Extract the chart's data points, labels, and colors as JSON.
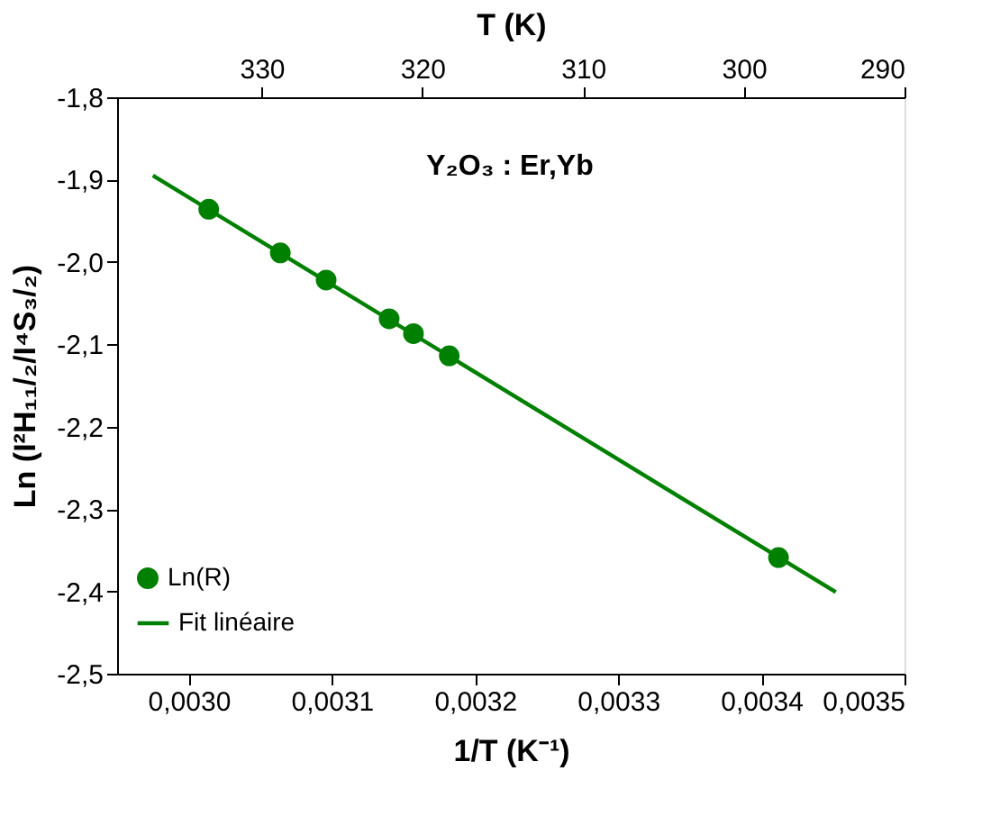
{
  "chart_data": {
    "type": "scatter",
    "xlabel": "1/T (K⁻¹)",
    "ylabel": "Ln (I²H₁₁/₂/I⁴S₃/₂)",
    "x2label": "T (K)",
    "annotations": [
      "Y₂O₃ : Er,Yb"
    ],
    "series": [
      {
        "name": "Ln(R)",
        "type": "scatter",
        "color": "#008000",
        "marker": "circle",
        "x": [
          0.003014,
          0.003064,
          0.003096,
          0.00314,
          0.003157,
          0.003182,
          0.003412
        ],
        "values": [
          -1.936,
          -1.989,
          -2.022,
          -2.069,
          -2.087,
          -2.114,
          -2.359
        ]
      },
      {
        "name": "Fit linéaire",
        "type": "line",
        "color": "#008000",
        "line_style": "solid",
        "marker": "none",
        "x": [
          0.002975,
          0.003452
        ],
        "values": [
          -1.895,
          -2.401
        ]
      }
    ],
    "xlim": [
      0.00295,
      0.0035
    ],
    "xticks": [
      {
        "value": 0.003,
        "label": "0,0030"
      },
      {
        "value": 0.0031,
        "label": "0,0031"
      },
      {
        "value": 0.0032,
        "label": "0,0032"
      },
      {
        "value": 0.0033,
        "label": "0,0033"
      },
      {
        "value": 0.0034,
        "label": "0,0034"
      },
      {
        "value": 0.0035,
        "label": "0,0035"
      }
    ],
    "ylim": [
      -2.5,
      -1.8
    ],
    "yticks": [
      {
        "value": -2.5,
        "label": "-2,5"
      },
      {
        "value": -2.4,
        "label": "-2,4"
      },
      {
        "value": -2.3,
        "label": "-2,3"
      },
      {
        "value": -2.2,
        "label": "-2,2"
      },
      {
        "value": -2.1,
        "label": "-2,1"
      },
      {
        "value": -2.0,
        "label": "-2,0"
      },
      {
        "value": -1.9,
        "label": "-1,9"
      },
      {
        "value": -1.8,
        "label": "-1,8"
      }
    ],
    "x2lim": [
      339,
      290
    ],
    "x2ticks": [
      330,
      320,
      310,
      300,
      290
    ],
    "grid": false,
    "legend": "bottom left"
  }
}
